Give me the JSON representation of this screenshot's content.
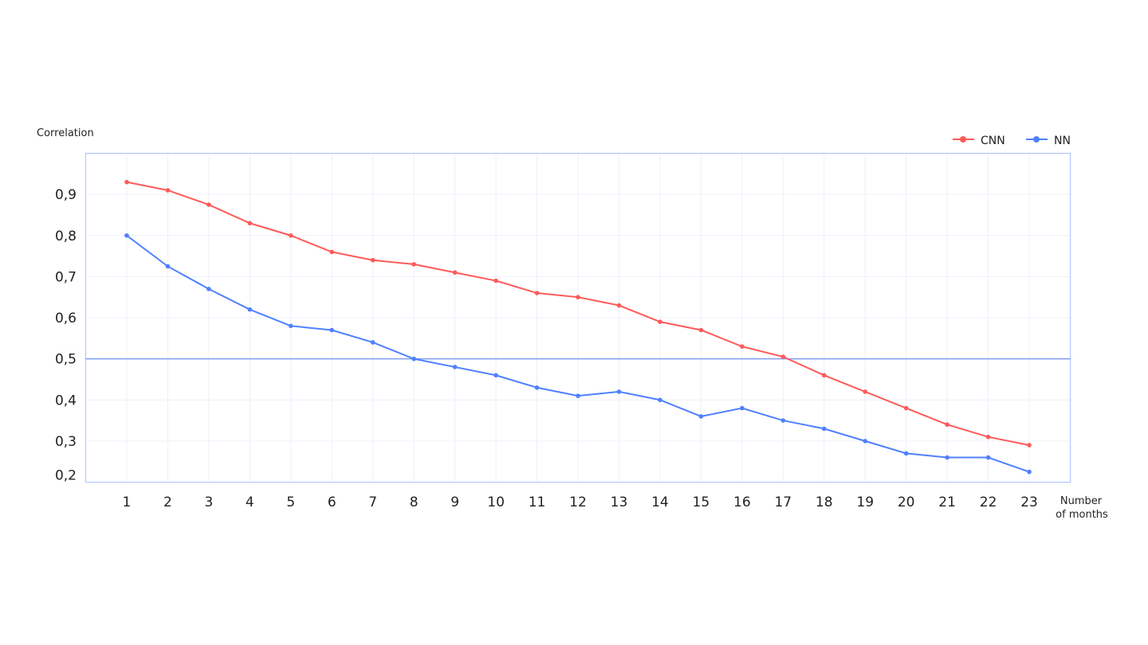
{
  "chart_data": {
    "type": "line",
    "ylabel": "Correlation",
    "xlabel": [
      "Number",
      "of months"
    ],
    "x": [
      1,
      2,
      3,
      4,
      5,
      6,
      7,
      8,
      9,
      10,
      11,
      12,
      13,
      14,
      15,
      16,
      17,
      18,
      19,
      20,
      21,
      22,
      23
    ],
    "xlim": [
      0,
      24
    ],
    "ylim": [
      0.2,
      1.0
    ],
    "yticks": [
      0.2,
      0.3,
      0.4,
      0.5,
      0.6,
      0.7,
      0.8,
      0.9
    ],
    "ytick_labels": [
      "0,2",
      "0,3",
      "0,4",
      "0,5",
      "0,6",
      "0,7",
      "0,8",
      "0,9"
    ],
    "reference_line": 0.5,
    "grid": true,
    "legend_position": "top-right",
    "series": [
      {
        "name": "CNN",
        "color": "#ff5a5a",
        "values": [
          0.93,
          0.91,
          0.875,
          0.83,
          0.8,
          0.76,
          0.74,
          0.73,
          0.71,
          0.69,
          0.66,
          0.65,
          0.63,
          0.59,
          0.57,
          0.53,
          0.505,
          0.46,
          0.42,
          0.38,
          0.34,
          0.31,
          0.29
        ]
      },
      {
        "name": "NN",
        "color": "#4f80ff",
        "values": [
          0.8,
          0.725,
          0.67,
          0.62,
          0.58,
          0.57,
          0.54,
          0.5,
          0.48,
          0.46,
          0.43,
          0.41,
          0.42,
          0.4,
          0.36,
          0.38,
          0.35,
          0.33,
          0.3,
          0.27,
          0.26,
          0.26,
          0.225
        ]
      }
    ],
    "colors": {
      "frame": "#a9c1ff",
      "grid": "#eef0fb",
      "reference": "#7f9ef5"
    }
  }
}
